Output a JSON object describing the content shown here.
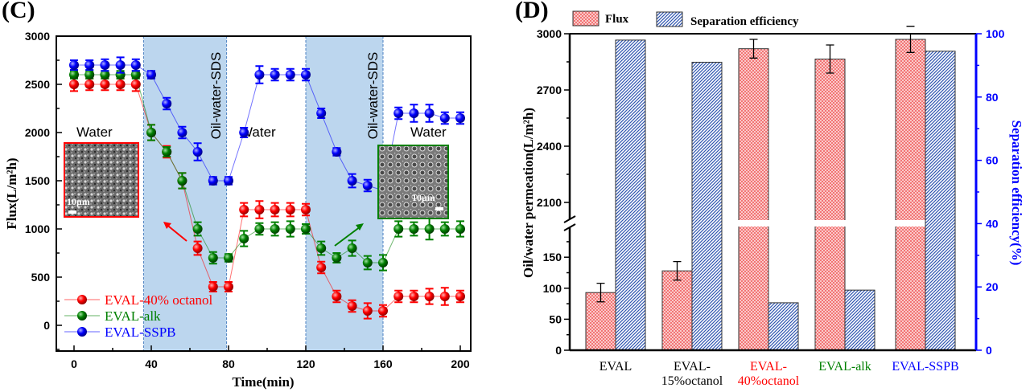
{
  "panels": {
    "c_label": "(C)",
    "d_label": "(D)"
  },
  "chart_data": [
    {
      "type": "line",
      "title": "",
      "xlabel": "Time(min)",
      "ylabel": "Flux(L/m²h)",
      "xlim": [
        -5,
        205
      ],
      "ylim": [
        -267,
        3000
      ],
      "xticks": [
        0,
        40,
        80,
        120,
        160,
        200
      ],
      "yticks": [
        0,
        500,
        1000,
        1500,
        2000,
        2500,
        3000
      ],
      "grid": false,
      "legend_position": "bottom-left",
      "x": [
        0,
        8,
        16,
        24,
        32,
        40,
        48,
        56,
        64,
        72,
        80,
        88,
        96,
        104,
        112,
        120,
        128,
        136,
        144,
        152,
        160,
        168,
        176,
        184,
        192,
        200
      ],
      "series": [
        {
          "name": "EVAL-40% octanol",
          "color": "#ff0000",
          "values": [
            2500,
            2500,
            2500,
            2500,
            2500,
            2000,
            1800,
            1500,
            800,
            400,
            400,
            1200,
            1200,
            1200,
            1200,
            1200,
            600,
            300,
            200,
            150,
            150,
            300,
            300,
            300,
            300,
            300
          ],
          "error": [
            70,
            60,
            60,
            60,
            70,
            80,
            60,
            80,
            70,
            50,
            50,
            70,
            90,
            70,
            70,
            60,
            60,
            60,
            60,
            80,
            60,
            60,
            60,
            80,
            90,
            60
          ]
        },
        {
          "name": "EVAL-alk",
          "color": "#008000",
          "values": [
            2600,
            2600,
            2600,
            2600,
            2600,
            2000,
            1800,
            1500,
            1000,
            700,
            700,
            900,
            1000,
            1000,
            1000,
            1000,
            800,
            700,
            800,
            650,
            650,
            1000,
            1000,
            1000,
            1000,
            1000
          ],
          "error": [
            40,
            40,
            40,
            40,
            40,
            80,
            50,
            80,
            70,
            60,
            40,
            80,
            60,
            70,
            80,
            50,
            70,
            50,
            80,
            70,
            80,
            80,
            70,
            110,
            70,
            80
          ]
        },
        {
          "name": "EVAL-SSPB",
          "color": "#0000ff",
          "values": [
            2700,
            2700,
            2700,
            2700,
            2700,
            2600,
            2300,
            2000,
            1800,
            1500,
            1500,
            2000,
            2600,
            2600,
            2600,
            2600,
            2200,
            1800,
            1500,
            1450,
            1400,
            2200,
            2200,
            2200,
            2150,
            2150
          ],
          "error": [
            50,
            50,
            60,
            80,
            60,
            40,
            60,
            60,
            90,
            40,
            40,
            50,
            90,
            60,
            60,
            60,
            50,
            40,
            70,
            60,
            50,
            60,
            90,
            90,
            60,
            60
          ]
        }
      ],
      "shaded_regions": [
        [
          36,
          79
        ],
        [
          120,
          160
        ]
      ],
      "annotations": {
        "water": [
          "Water",
          "Water",
          "Water"
        ],
        "oil_water_sds": [
          "Oil-water-SDS",
          "Oil-water-SDS"
        ],
        "inset_scale": [
          "10μm",
          "10μm"
        ]
      }
    },
    {
      "type": "bar",
      "title": "",
      "xlabel": "",
      "ylabel": "Oil/water permeation(L/m²h)",
      "ylabel_right": "Separation efficiency(%)",
      "ylim_left_lower": [
        0,
        205
      ],
      "ylim_left_upper": [
        1990,
        3000
      ],
      "yticks_left": [
        0,
        50,
        100,
        150,
        2100,
        2400,
        2700,
        3000
      ],
      "ylim_right": [
        0,
        100
      ],
      "yticks_right": [
        0,
        20,
        40,
        60,
        80,
        100
      ],
      "right_axis_color": "#0000ff",
      "legend_position": "top",
      "categories": [
        {
          "lines": [
            "EVAL"
          ],
          "color": "#000000"
        },
        {
          "lines": [
            "EVAL-",
            "15%octanol"
          ],
          "color": "#000000"
        },
        {
          "lines": [
            "EVAL-",
            "40%octanol"
          ],
          "color": "#ff0000"
        },
        {
          "lines": [
            "EVAL-alk"
          ],
          "color": "#008000"
        },
        {
          "lines": [
            "EVAL-SSPB"
          ],
          "color": "#0000ff"
        }
      ],
      "series": [
        {
          "name": "Flux",
          "axis": "left",
          "color": "#f08080",
          "values": [
            93,
            128,
            2920,
            2865,
            2970
          ],
          "error": [
            15,
            15,
            50,
            75,
            70
          ]
        },
        {
          "name": "Separation efficiency",
          "axis": "right",
          "color": "#3355aa",
          "values": [
            98,
            91,
            15,
            19,
            94.5
          ]
        }
      ]
    }
  ]
}
